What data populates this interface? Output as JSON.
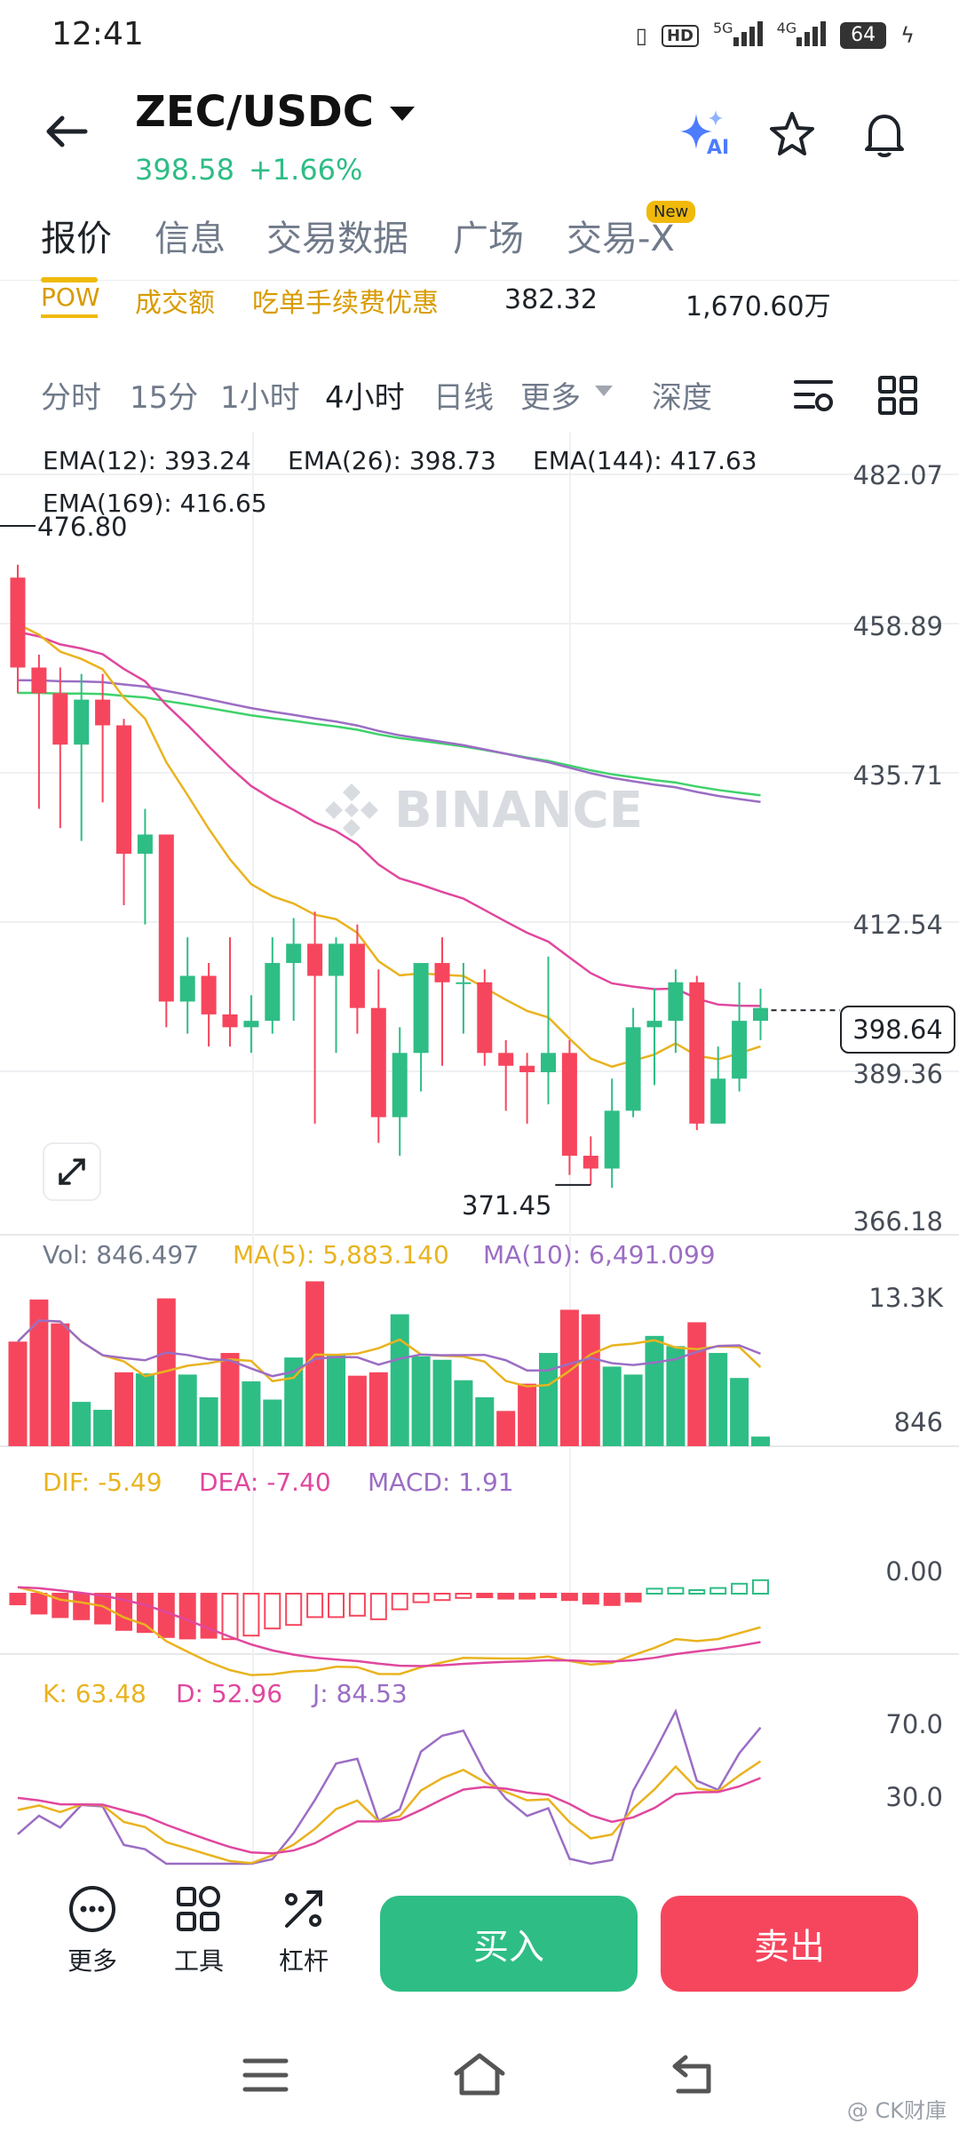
{
  "status_bar": {
    "time": "12:41",
    "hd": "HD",
    "net1": "5G",
    "net2": "4G",
    "battery": "64"
  },
  "header": {
    "pair": "ZEC/USDC",
    "price": "398.58",
    "change": "+1.66%",
    "ai_label": "AI"
  },
  "tabs": [
    {
      "label": "报价",
      "active": true
    },
    {
      "label": "信息",
      "active": false
    },
    {
      "label": "交易数据",
      "active": false
    },
    {
      "label": "广场",
      "active": false
    },
    {
      "label": "交易-X",
      "active": false,
      "badge": "New"
    }
  ],
  "ticker": {
    "tag": "POW",
    "volume_label": "成交额",
    "fee_label": "吃单手续费优惠",
    "value1": "382.32",
    "value2": "1,670.60万"
  },
  "intervals": [
    {
      "label": "分时",
      "active": false
    },
    {
      "label": "15分",
      "active": false
    },
    {
      "label": "1小时",
      "active": false
    },
    {
      "label": "4小时",
      "active": true
    },
    {
      "label": "日线",
      "active": false
    },
    {
      "label": "更多",
      "active": false
    },
    {
      "label": "深度",
      "active": false
    }
  ],
  "chart": {
    "ema": {
      "ema12": "EMA(12): 393.24",
      "ema26": "EMA(26): 398.73",
      "ema144": "EMA(144): 417.63",
      "ema169": "EMA(169): 416.65"
    },
    "y_ticks": [
      "482.07",
      "458.89",
      "435.71",
      "412.54",
      "389.36",
      "366.18"
    ],
    "high_label": "476.80",
    "low_label": "371.45",
    "current_price": "398.64",
    "watermark": "BINANCE",
    "colors": {
      "up": "#2ebd85",
      "down": "#f6465d",
      "ema12": "#e9b31f",
      "ema26": "#e0479e",
      "ema144": "#9b6dc4",
      "ema169": "#3ed26b"
    }
  },
  "chart_data": {
    "type": "candlestick",
    "interval": "4小时",
    "ylim": [
      366.18,
      482.07
    ],
    "candles": [
      {
        "o": 466,
        "h": 468,
        "l": 448,
        "c": 452
      },
      {
        "o": 452,
        "h": 454,
        "l": 430,
        "c": 448
      },
      {
        "o": 448,
        "h": 452,
        "l": 427,
        "c": 440
      },
      {
        "o": 440,
        "h": 451,
        "l": 425,
        "c": 447
      },
      {
        "o": 447,
        "h": 451,
        "l": 431,
        "c": 443
      },
      {
        "o": 443,
        "h": 444,
        "l": 415,
        "c": 423
      },
      {
        "o": 423,
        "h": 430,
        "l": 412,
        "c": 426
      },
      {
        "o": 426,
        "h": 426,
        "l": 396,
        "c": 400
      },
      {
        "o": 400,
        "h": 410,
        "l": 395,
        "c": 404
      },
      {
        "o": 404,
        "h": 406,
        "l": 393,
        "c": 398
      },
      {
        "o": 398,
        "h": 410,
        "l": 393,
        "c": 396
      },
      {
        "o": 396,
        "h": 401,
        "l": 392,
        "c": 397
      },
      {
        "o": 397,
        "h": 410,
        "l": 395,
        "c": 406
      },
      {
        "o": 406,
        "h": 413,
        "l": 397,
        "c": 409
      },
      {
        "o": 409,
        "h": 414,
        "l": 381,
        "c": 404
      },
      {
        "o": 404,
        "h": 410,
        "l": 392,
        "c": 409
      },
      {
        "o": 409,
        "h": 412,
        "l": 395,
        "c": 399
      },
      {
        "o": 399,
        "h": 405,
        "l": 378,
        "c": 382
      },
      {
        "o": 382,
        "h": 396,
        "l": 376,
        "c": 392
      },
      {
        "o": 392,
        "h": 405,
        "l": 386,
        "c": 406
      },
      {
        "o": 406,
        "h": 410,
        "l": 390,
        "c": 403
      },
      {
        "o": 403,
        "h": 406,
        "l": 395,
        "c": 403
      },
      {
        "o": 403,
        "h": 405,
        "l": 390,
        "c": 392
      },
      {
        "o": 392,
        "h": 394,
        "l": 383,
        "c": 390
      },
      {
        "o": 390,
        "h": 392,
        "l": 381,
        "c": 389
      },
      {
        "o": 389,
        "h": 407,
        "l": 384,
        "c": 392
      },
      {
        "o": 392,
        "h": 394,
        "l": 373,
        "c": 376
      },
      {
        "o": 376,
        "h": 379,
        "l": 371.45,
        "c": 374
      },
      {
        "o": 374,
        "h": 388,
        "l": 371,
        "c": 383
      },
      {
        "o": 383,
        "h": 399,
        "l": 382,
        "c": 396
      },
      {
        "o": 396,
        "h": 402,
        "l": 387,
        "c": 397
      },
      {
        "o": 397,
        "h": 405,
        "l": 392,
        "c": 403
      },
      {
        "o": 403,
        "h": 404,
        "l": 380,
        "c": 381
      },
      {
        "o": 381,
        "h": 393,
        "l": 381,
        "c": 388
      },
      {
        "o": 388,
        "h": 403,
        "l": 386,
        "c": 397
      },
      {
        "o": 397,
        "h": 402,
        "l": 394,
        "c": 399
      }
    ]
  },
  "volume": {
    "labels": {
      "vol": "Vol: 846.497",
      "ma5": "MA(5): 5,883.140",
      "ma10": "MA(10): 6,491.099"
    },
    "ticks": [
      "13.3K",
      "846"
    ],
    "values": [
      9200,
      12900,
      10800,
      3900,
      3200,
      6500,
      6400,
      13000,
      6300,
      4300,
      8200,
      5700,
      4100,
      7800,
      14500,
      8100,
      6200,
      6500,
      11600,
      7900,
      7600,
      5800,
      4300,
      3100,
      5500,
      8200,
      12000,
      11600,
      7000,
      6300,
      9700,
      8800,
      10900,
      8200,
      6000,
      846
    ],
    "dirs": [
      "d",
      "d",
      "d",
      "u",
      "u",
      "d",
      "u",
      "d",
      "u",
      "u",
      "d",
      "u",
      "u",
      "u",
      "d",
      "u",
      "d",
      "d",
      "u",
      "u",
      "u",
      "u",
      "u",
      "d",
      "d",
      "u",
      "d",
      "d",
      "u",
      "u",
      "u",
      "u",
      "d",
      "u",
      "u",
      "u"
    ]
  },
  "macd": {
    "labels": {
      "dif": "DIF: -5.49",
      "dea": "DEA: -7.40",
      "macd": "MACD: 1.91"
    },
    "ticks": [
      "0.00"
    ],
    "hist": [
      -1.5,
      -2.8,
      -3.3,
      -3.6,
      -4.2,
      -5.1,
      -5.4,
      -6.1,
      -6.3,
      -6.2,
      -6.4,
      -5.9,
      -4.9,
      -4.4,
      -3.3,
      -3.3,
      -3.1,
      -3.6,
      -2.2,
      -1.2,
      -0.9,
      -0.6,
      -0.5,
      -0.7,
      -0.7,
      -0.5,
      -0.9,
      -1.4,
      -1.6,
      -1.1,
      0.7,
      0.8,
      0.5,
      0.8,
      1.4,
      1.9
    ]
  },
  "kdj": {
    "labels": {
      "k": "K: 63.48",
      "d": "D: 52.96",
      "j": "J: 84.53"
    },
    "ticks": [
      "70.0",
      "30.0"
    ]
  },
  "bottom_bar": {
    "more": "更多",
    "tools": "工具",
    "leverage": "杠杆",
    "buy": "买入",
    "sell": "卖出"
  },
  "footer": {
    "watermark": "@ CK财庫"
  }
}
